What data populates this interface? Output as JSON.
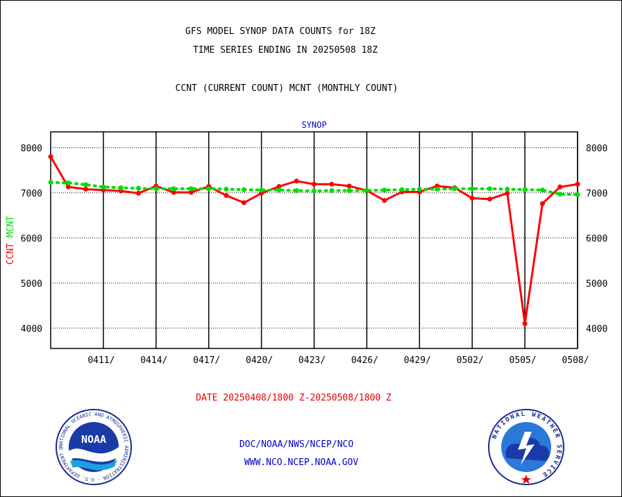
{
  "header": {
    "title_line1": "GFS MODEL SYNOP DATA COUNTS for 18Z",
    "title_line2": "TIME SERIES ENDING IN 20250508 18Z",
    "subtitle": "CCNT (CURRENT COUNT) MCNT (MONTHLY COUNT)"
  },
  "footer": {
    "date_range": "DATE 20250408/1800 Z-20250508/1800 Z",
    "agency": "DOC/NOAA/NWS/NCEP/NCO",
    "website": "WWW.NCO.NCEP.NOAA.GOV"
  },
  "logos": {
    "noaa": {
      "text": "NOAA",
      "ring_text": "NATIONAL OCEANIC AND ATMOSPHERIC ADMINISTRATION · U.S. DEPARTMENT OF COMMERCE"
    },
    "nws": {
      "ring_text": "NATIONAL WEATHER SERVICE"
    }
  },
  "colors": {
    "ccnt": "#ff0000",
    "mcnt": "#00dd00",
    "title": "#0000cc",
    "grid": "#000000"
  },
  "chart_data": {
    "type": "line",
    "title": "SYNOP",
    "ylabel_ccnt": "CCNT",
    "ylabel_mcnt": "MCNT",
    "ylim": [
      3550,
      8350
    ],
    "yticks": [
      4000,
      5000,
      6000,
      7000,
      8000
    ],
    "x_dates": [
      "0408",
      "0409",
      "0410",
      "0411",
      "0412",
      "0413",
      "0414",
      "0415",
      "0416",
      "0417",
      "0418",
      "0419",
      "0420",
      "0421",
      "0422",
      "0423",
      "0424",
      "0425",
      "0426",
      "0427",
      "0428",
      "0429",
      "0430",
      "0501",
      "0502",
      "0503",
      "0504",
      "0505",
      "0506",
      "0507",
      "0508"
    ],
    "xtick_labels": [
      "0411/",
      "0414/",
      "0417/",
      "0420/",
      "0423/",
      "0426/",
      "0429/",
      "0502/",
      "0505/",
      "0508/"
    ],
    "grid": true,
    "series": [
      {
        "name": "CCNT",
        "color": "#ff0000",
        "values": [
          7800,
          7130,
          7080,
          7060,
          7040,
          6990,
          7150,
          7010,
          7010,
          7140,
          6940,
          6780,
          6990,
          7140,
          7260,
          7190,
          7190,
          7150,
          7050,
          6830,
          7020,
          7020,
          7150,
          7110,
          6880,
          6860,
          6990,
          4100,
          6760,
          7130,
          7190
        ]
      },
      {
        "name": "MCNT",
        "color": "#00dd00",
        "values": [
          7230,
          7220,
          7180,
          7130,
          7110,
          7100,
          7090,
          7090,
          7090,
          7090,
          7080,
          7070,
          7060,
          7060,
          7050,
          7040,
          7050,
          7050,
          7050,
          7060,
          7070,
          7080,
          7080,
          7090,
          7090,
          7090,
          7080,
          7070,
          7060,
          6970,
          6960
        ]
      }
    ]
  }
}
